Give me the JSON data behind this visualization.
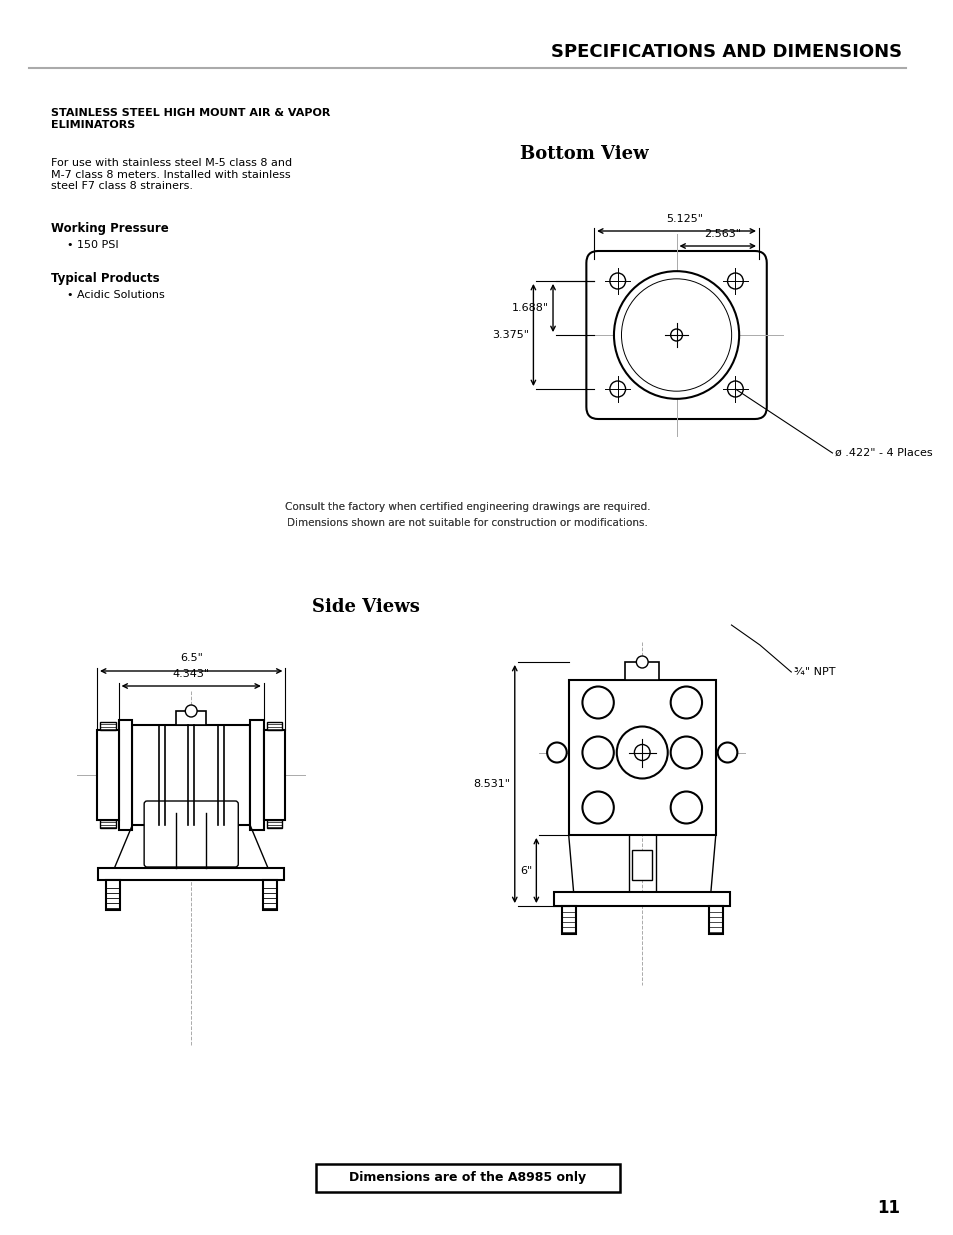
{
  "title": "SPECIFICATIONS AND DIMENSIONS",
  "page_number": "11",
  "bg_color": "#ffffff",
  "text_color": "#000000",
  "section_title": "STAINLESS STEEL HIGH MOUNT AIR & VAPOR\nELIMINATORS",
  "description": "For use with stainless steel M-5 class 8 and\nM-7 class 8 meters. Installed with stainless\nsteel F7 class 8 strainers.",
  "working_pressure_label": "Working Pressure",
  "working_pressure_value": "• 150 PSI",
  "typical_products_label": "Typical Products",
  "typical_products_value": "• Acidic Solutions",
  "bottom_view_title": "Bottom View",
  "side_views_title": "Side Views",
  "npt_label": "¾\" NPT",
  "dim_5125": "5.125\"",
  "dim_2563": "2.563\"",
  "dim_1688": "1.688\"",
  "dim_3375": "3.375\"",
  "dim_phi422": "ø .422\" - 4 Places",
  "dim_65": "6.5\"",
  "dim_4343": "4.343\"",
  "dim_8531": "8.531\"",
  "dim_6": "6\"",
  "note_line1": "Consult the factory when certified engineering drawings are required.",
  "note_line2": "Dimensions shown are not suitable for construction or modifications.",
  "footer_note": "Dimensions are of the A8985 only"
}
